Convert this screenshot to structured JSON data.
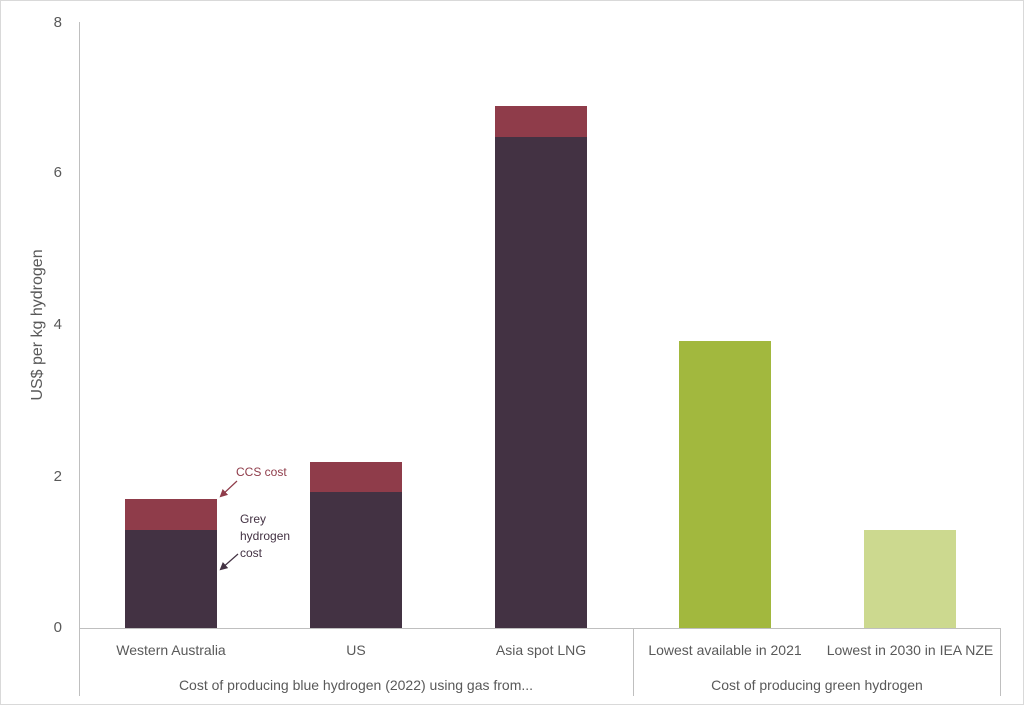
{
  "chart_data": {
    "type": "bar",
    "stacked": true,
    "title": "",
    "xlabel": "",
    "ylabel": "US$ per kg hydrogen",
    "ylim": [
      0,
      8
    ],
    "yticks": [
      0,
      2,
      4,
      6,
      8
    ],
    "grid": false,
    "legend": "none (inline annotations)",
    "categories": [
      "Western Australia",
      "US",
      "Asia spot LNG",
      "Lowest available in 2021",
      "Lowest in 2030 in IEA NZE"
    ],
    "category_groups": [
      {
        "label": "Cost of producing blue hydrogen (2022) using gas from...",
        "categories": [
          "Western Australia",
          "US",
          "Asia spot LNG"
        ]
      },
      {
        "label": "Cost of producing green hydrogen",
        "categories": [
          "Lowest available in 2021",
          "Lowest in 2030 in IEA NZE"
        ]
      }
    ],
    "series": [
      {
        "name": "Grey hydrogen cost",
        "color": "#433243",
        "values": [
          1.3,
          1.8,
          6.5,
          null,
          null
        ]
      },
      {
        "name": "CCS cost",
        "color": "#8f3c4a",
        "values": [
          0.4,
          0.4,
          0.4,
          null,
          null
        ]
      },
      {
        "name": "Green hydrogen cost",
        "colors": [
          "#a2b83e",
          "#ccd98f"
        ],
        "values": [
          null,
          null,
          null,
          3.8,
          1.3
        ]
      }
    ],
    "totals": [
      1.7,
      2.2,
      6.9,
      3.8,
      1.3
    ],
    "annotations": [
      {
        "text": "CCS cost",
        "target": "Western Australia CCS segment",
        "color": "#8f3c4a"
      },
      {
        "text": "Grey hydrogen cost",
        "target": "Western Australia grey segment",
        "color": "#433243"
      }
    ]
  },
  "axis": {
    "ylabel": "US$ per kg hydrogen",
    "yticks": [
      "0",
      "2",
      "4",
      "6",
      "8"
    ]
  },
  "categories": [
    "Western Australia",
    "US",
    "Asia spot LNG",
    "Lowest available in 2021",
    "Lowest in 2030 in IEA NZE"
  ],
  "groups": [
    "Cost of producing blue hydrogen (2022) using gas from...",
    "Cost of producing green hydrogen"
  ],
  "annotations": {
    "ccs": "CCS cost",
    "grey_line1": "Grey",
    "grey_line2": "hydrogen",
    "grey_line3": "cost"
  },
  "colors": {
    "grey_h2": "#433243",
    "ccs": "#8f3c4a",
    "green_2021": "#a2b83e",
    "green_2030": "#ccd98f",
    "axis": "#bfbfbf",
    "text": "#595959"
  }
}
